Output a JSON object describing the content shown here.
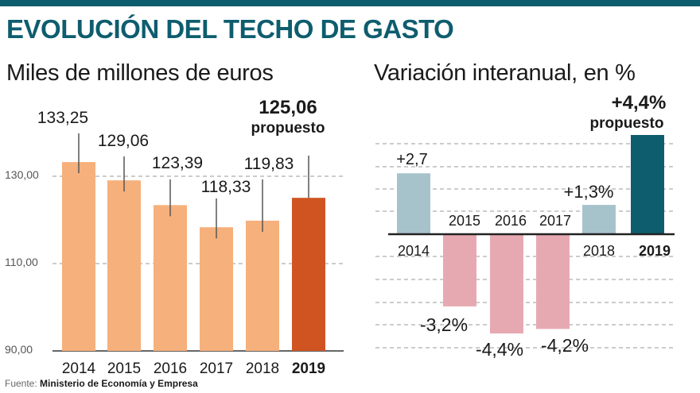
{
  "colors": {
    "bar_light": "#f6b07c",
    "bar_highlight": "#cf5422",
    "pos_light": "#a6c3cc",
    "pos_highlight": "#0e5d6e",
    "neg": "#e7a9b1",
    "accent": "#0e5d6e",
    "title": "#0e5d6e"
  },
  "title": "EVOLUCIÓN DEL TECHO DE GASTO",
  "source": {
    "label": "Fuente:",
    "text": "Ministerio de Economía y Empresa"
  },
  "chart_data": [
    {
      "type": "bar",
      "title": "Miles de millones de euros",
      "categories": [
        "2014",
        "2015",
        "2016",
        "2017",
        "2018",
        "2019"
      ],
      "values": [
        133.25,
        129.06,
        123.39,
        118.33,
        119.83,
        125.06
      ],
      "value_labels": [
        "133,25",
        "129,06",
        "123,39",
        "118,33",
        "119,83",
        "125,06"
      ],
      "highlight_index": 5,
      "highlight_note": "propuesto",
      "yticks": [
        90,
        110,
        130
      ],
      "ytick_labels": [
        "90,00",
        "110,00",
        "130,00"
      ],
      "ylim": [
        90,
        136
      ],
      "grid": true
    },
    {
      "type": "bar",
      "title": "Variación interanual, en %",
      "categories": [
        "2014",
        "2015",
        "2016",
        "2017",
        "2018",
        "2019"
      ],
      "values": [
        2.7,
        -3.2,
        -4.4,
        -4.2,
        1.3,
        4.4
      ],
      "value_labels": [
        "+2,7",
        "-3,2%",
        "-4,4%",
        "-4,2%",
        "+1,3%",
        "+4,4%"
      ],
      "highlight_index": 5,
      "highlight_note": "propuesto",
      "ylim": [
        -5,
        5
      ],
      "grid": true
    }
  ]
}
